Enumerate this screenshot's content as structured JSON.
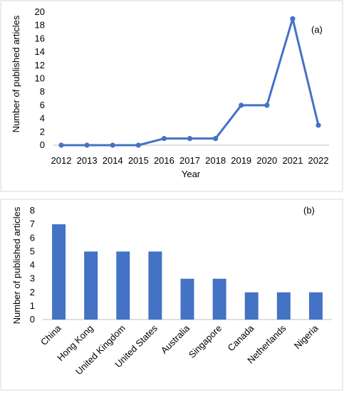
{
  "chart_data": [
    {
      "type": "line",
      "annotation": "(a)",
      "xlabel": "Year",
      "ylabel": "Number of published articles",
      "x": [
        "2012",
        "2013",
        "2014",
        "2015",
        "2016",
        "2017",
        "2018",
        "2019",
        "2020",
        "2021",
        "2022"
      ],
      "values": [
        0,
        0,
        0,
        0,
        1,
        1,
        1,
        6,
        6,
        19,
        3
      ],
      "ylim": [
        0,
        20
      ],
      "yticks": [
        0,
        2,
        4,
        6,
        8,
        10,
        12,
        14,
        16,
        18,
        20
      ],
      "color": "#4472c4",
      "markers": true,
      "grid": false
    },
    {
      "type": "bar",
      "annotation": "(b)",
      "xlabel": "",
      "ylabel": "Number of published articles",
      "categories": [
        "China",
        "Hong Kong",
        "United Kingdom",
        "United States",
        "Australia",
        "Singapore",
        "Canada",
        "Netherlands",
        "Nigeria"
      ],
      "values": [
        7,
        5,
        5,
        5,
        3,
        3,
        2,
        2,
        2
      ],
      "ylim": [
        0,
        8
      ],
      "yticks": [
        0,
        1,
        2,
        3,
        4,
        5,
        6,
        7,
        8
      ],
      "color": "#4472c4",
      "tick_label_rotation": "-45",
      "grid": false
    }
  ]
}
